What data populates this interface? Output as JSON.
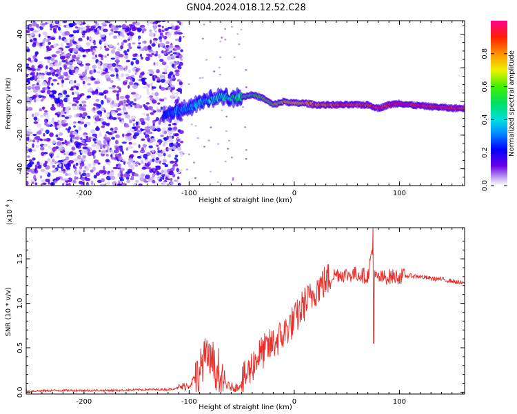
{
  "title": "GN04.2024.018.12.52.C28",
  "chart_data": [
    {
      "type": "heatmap",
      "xlabel": "Height of straight line (km)",
      "ylabel": "Frequency (Hz)",
      "xlim": [
        -255,
        162
      ],
      "ylim": [
        -50,
        48
      ],
      "xticks": [
        -200,
        -100,
        0,
        100
      ],
      "yticks": [
        40,
        20,
        0,
        -20,
        -40
      ],
      "colorbar": {
        "label": "Normalized spectral amplitude",
        "range": [
          0,
          1
        ],
        "ticks": [
          "0.0",
          "0.2",
          "0.4",
          "0.6",
          "0.8"
        ],
        "colormap": "rainbow"
      },
      "noise_region_x": [
        -255,
        -115
      ],
      "ridge": {
        "x": [
          -125,
          -115,
          -100,
          -85,
          -70,
          -55,
          -40,
          -30,
          -20,
          -10,
          0,
          10,
          20,
          40,
          60,
          70,
          80,
          90,
          100,
          110,
          130,
          150,
          162
        ],
        "freq": [
          -8,
          -6,
          -4,
          0,
          3,
          2,
          4,
          2,
          -2,
          0,
          -1,
          -1,
          -2,
          -2,
          -2,
          -2,
          -4,
          -2,
          -1,
          -2,
          -3,
          -4,
          -4
        ],
        "strength": [
          0.25,
          0.3,
          0.35,
          0.4,
          0.45,
          0.5,
          0.55,
          0.6,
          0.65,
          0.7,
          0.75,
          0.8,
          0.85,
          0.9,
          0.92,
          0.92,
          0.95,
          0.95,
          0.97,
          0.97,
          0.95,
          0.95,
          0.95
        ]
      }
    },
    {
      "type": "line",
      "xlabel": "Height of straight line (km)",
      "ylabel": "SNR (10 * v/v)",
      "yscale_note": "(x10",
      "yscale_exp": "4",
      "xlim": [
        -255,
        162
      ],
      "ylim": [
        -0.02,
        1.85
      ],
      "xticks": [
        -200,
        -100,
        0,
        100
      ],
      "yticks": [
        "0.0",
        "0.5",
        "1.0",
        "1.5"
      ],
      "color": "#e8312c",
      "series": [
        {
          "x": [
            -255,
            -230,
            -200,
            -170,
            -140,
            -120,
            -110,
            -100,
            -95,
            -90,
            -85,
            -80,
            -75,
            -70,
            -65,
            -60,
            -55,
            -50,
            -45,
            -40,
            -35,
            -30,
            -25,
            -20,
            -15,
            -10,
            -5,
            0,
            5,
            10,
            15,
            20,
            25,
            30,
            35,
            40,
            50,
            60,
            70,
            74,
            76,
            80,
            90,
            100,
            110,
            120,
            130,
            140,
            150,
            162
          ],
          "y": [
            0.01,
            0.02,
            0.02,
            0.02,
            0.03,
            0.03,
            0.05,
            0.08,
            0.15,
            0.25,
            0.4,
            0.35,
            0.25,
            0.15,
            0.08,
            0.06,
            0.05,
            0.1,
            0.2,
            0.3,
            0.4,
            0.45,
            0.5,
            0.55,
            0.6,
            0.65,
            0.75,
            0.8,
            0.9,
            1.0,
            1.05,
            1.15,
            1.2,
            1.25,
            1.3,
            1.33,
            1.32,
            1.33,
            1.3,
            1.6,
            1.3,
            1.28,
            1.3,
            1.3,
            1.31,
            1.3,
            1.28,
            1.27,
            1.25,
            1.22
          ]
        }
      ]
    }
  ]
}
